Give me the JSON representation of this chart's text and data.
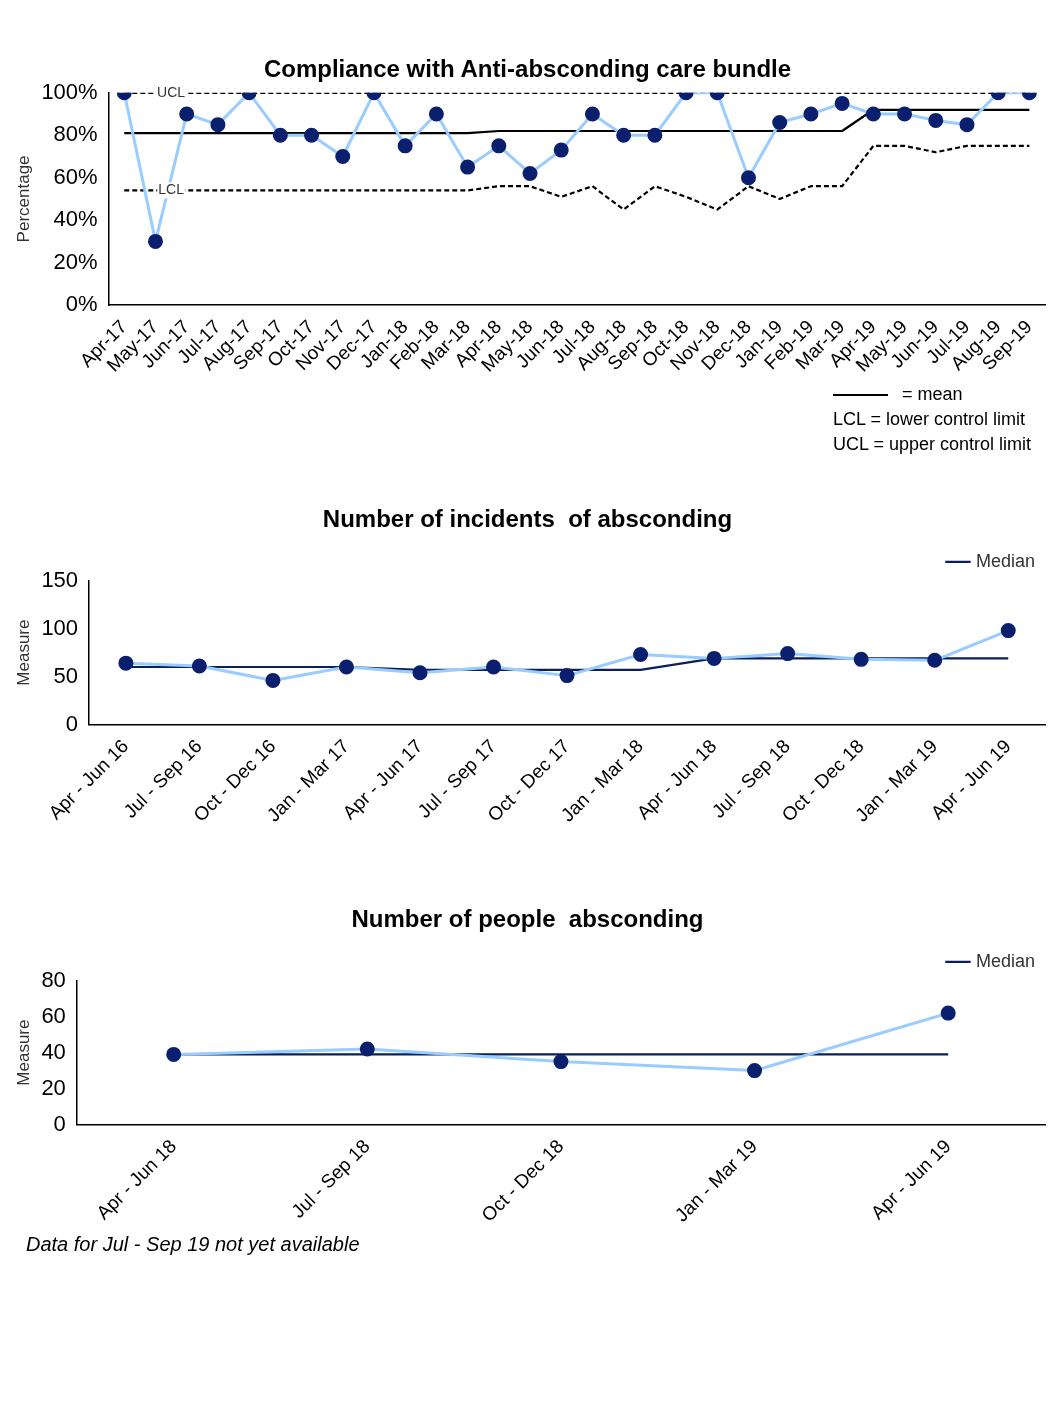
{
  "chart_data": [
    {
      "type": "line",
      "title": "Compliance with Anti-absconding care bundle",
      "ylabel": "Percentage",
      "categories": [
        "Apr-17",
        "May-17",
        "Jun-17",
        "Jul-17",
        "Aug-17",
        "Sep-17",
        "Oct-17",
        "Nov-17",
        "Dec-17",
        "Jan-18",
        "Feb-18",
        "Mar-18",
        "Apr-18",
        "May-18",
        "Jun-18",
        "Jul-18",
        "Aug-18",
        "Sep-18",
        "Oct-18",
        "Nov-18",
        "Dec-18",
        "Jan-19",
        "Feb-19",
        "Mar-19",
        "Apr-19",
        "May-19",
        "Jun-19",
        "Jul-19",
        "Aug-19",
        "Sep-19"
      ],
      "series": [
        {
          "color": "#99ccff",
          "colors": [
            "#0a1f6e",
            "#0a1f6e",
            "#0a1f6e",
            "#0a1f6e",
            "#0a1f6e",
            "#0a1f6e",
            "#0a1f6e",
            "#0a1f6e",
            "#0a1f6e",
            "#0a1f6e",
            "#0a1f6e",
            "#0a1f6e",
            "#0a1f6e",
            "#0a1f6e",
            "#0a1f6e",
            "#0a1f6e",
            "#0a1f6e",
            "#0a1f6e",
            "#0a1f6e",
            "#0a1f6e",
            "#0a1f6e",
            "#0a1f6e",
            "#0a1f6e",
            "#0a1f6e",
            "#0a1f6e",
            "#0a1f6e",
            "#0a1f6e",
            "#0a1f6e",
            "#0a1f6e",
            "#0a1f6e"
          ],
          "marker": "circle",
          "values": [
            100,
            30,
            90,
            85,
            100,
            80,
            80,
            70,
            100,
            75,
            90,
            65,
            75,
            62,
            73,
            90,
            80,
            80,
            100,
            100,
            60,
            86,
            90,
            95,
            90,
            90,
            87,
            85,
            100,
            100
          ]
        },
        {
          "color": "#000000",
          "marker": "none",
          "values": [
            81,
            81,
            81,
            81,
            81,
            81,
            81,
            81,
            81,
            81,
            81,
            81,
            82,
            82,
            82,
            82,
            82,
            82,
            82,
            82,
            82,
            82,
            82,
            82,
            92,
            92,
            92,
            92,
            92,
            92
          ]
        },
        {
          "name": "UCL",
          "color": "#000000",
          "marker": "none",
          "line_style": "dashed",
          "values": [
            100,
            100,
            100,
            100,
            100,
            100,
            100,
            100,
            100,
            100,
            100,
            100,
            100,
            100,
            100,
            100,
            100,
            100,
            100,
            100,
            100,
            100,
            100,
            100,
            100,
            100,
            100,
            100,
            100,
            100
          ]
        },
        {
          "name": "LCL",
          "color": "#000000",
          "marker": "none",
          "line_style": "dashed",
          "values": [
            54,
            54,
            54,
            54,
            54,
            54,
            54,
            54,
            54,
            54,
            54,
            54,
            56,
            56,
            51,
            56,
            45,
            56,
            51,
            45,
            56,
            50,
            56,
            56,
            75,
            75,
            72,
            75,
            75,
            75
          ]
        }
      ],
      "ylim": [
        0,
        100
      ],
      "yticks": [
        {
          "value": 0,
          "label": "0%"
        },
        {
          "value": 20,
          "label": "20%"
        },
        {
          "value": 40,
          "label": "40%"
        },
        {
          "value": 60,
          "label": "60%"
        },
        {
          "value": 80,
          "label": "80%"
        },
        {
          "value": 100,
          "label": "100%"
        }
      ],
      "grid": false,
      "legend": false,
      "annotations": [
        "= mean",
        "LCL = lower control limit",
        "UCL = upper control limit"
      ]
    },
    {
      "type": "line",
      "title": "Number of incidents  of absconding",
      "ylabel": "Measure",
      "categories": [
        "Apr - Jun 16",
        "Jul - Sep 16",
        "Oct - Dec 16",
        "Jan - Mar 17",
        "Apr - Jun 17",
        "Jul - Sep 17",
        "Oct - Dec 17",
        "Jan - Mar 18",
        "Apr - Jun 18",
        "Jul - Sep 18",
        "Oct - Dec 18",
        "Jan - Mar 19",
        "Apr - Jun 19"
      ],
      "series": [
        {
          "color": "#99ccff",
          "colors": [
            "#0a1f6e",
            "#0a1f6e",
            "#0a1f6e",
            "#0a1f6e",
            "#0a1f6e",
            "#0a1f6e",
            "#0a1f6e",
            "#0a1f6e",
            "#0a1f6e",
            "#0a1f6e",
            "#0a1f6e",
            "#0a1f6e",
            "#0a1f6e"
          ],
          "marker": "circle",
          "values": [
            64,
            61,
            46,
            60,
            54,
            60,
            51,
            73,
            69,
            74,
            68,
            67,
            98
          ]
        },
        {
          "name": "Median",
          "color": "#0a1f5c",
          "marker": "none",
          "values": [
            60,
            60,
            60,
            60,
            57,
            57,
            57,
            57,
            69,
            69,
            69,
            69,
            69
          ]
        }
      ],
      "ylim": [
        0,
        150
      ],
      "yticks": [
        0,
        50,
        100,
        150
      ],
      "grid": false,
      "legend": "top right"
    },
    {
      "type": "line",
      "title": "Number of people  absconding",
      "ylabel": "Measure",
      "categories": [
        "Apr - Jun 18",
        "Jul - Sep 18",
        "Oct - Dec 18",
        "Jan - Mar 19",
        "Apr - Jun 19"
      ],
      "series": [
        {
          "color": "#99ccff",
          "colors": [
            "#0a1f6e",
            "#0a1f6e",
            "#0a1f6e",
            "#0a1f6e",
            "#0a1f6e"
          ],
          "marker": "circle",
          "values": [
            39,
            42,
            35,
            30,
            62
          ]
        },
        {
          "name": "Median",
          "color": "#0a1f5c",
          "marker": "none",
          "values": [
            39,
            39,
            39,
            39,
            39
          ]
        }
      ],
      "ylim": [
        0,
        80
      ],
      "yticks": [
        0,
        20,
        40,
        60,
        80
      ],
      "grid": false,
      "legend": "top right",
      "annotations": [
        "Data for Jul - Sep 19 not yet available"
      ]
    }
  ]
}
